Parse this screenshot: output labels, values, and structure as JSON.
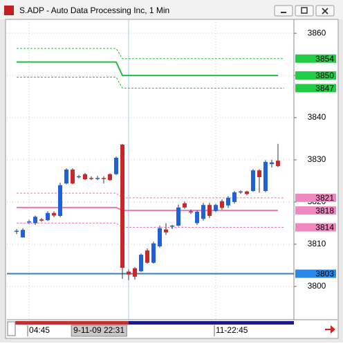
{
  "chart_data": {
    "type": "candlestick",
    "title": "S.ADP - Auto Data Processing Inc, 1 Min",
    "up_color": "#2060d8",
    "down_color": "#c8282a",
    "open": [
      3813,
      3811.6,
      3815.2,
      3815,
      3815.9,
      3815.7,
      3817.4,
      3816.7,
      3824.4,
      3827.7,
      3826,
      3826.6,
      3825.7,
      3825.6,
      3825.7,
      3826.6,
      3826.6,
      3833.6,
      3803.5,
      3804.3,
      3803.6,
      3808.5,
      3805.6,
      3809.5,
      3813.5,
      3814.2,
      3814.4,
      3819.7,
      3817.8,
      3815,
      3816,
      3819.3,
      3817.9,
      3820.2,
      3819.2,
      3820,
      3822.4,
      3822.5,
      3822.6,
      3827.5,
      3822.6,
      3829,
      3829.8
    ],
    "high": [
      3813.6,
      3813.8,
      3815.8,
      3816.8,
      3816.2,
      3817.8,
      3817.8,
      3824.6,
      3828,
      3828,
      3826.4,
      3826.9,
      3826.1,
      3826.2,
      3826.1,
      3826.8,
      3830.8,
      3833.8,
      3804,
      3804.6,
      3807.8,
      3809,
      3810.6,
      3814.4,
      3815,
      3814.6,
      3819.4,
      3820.1,
      3818.2,
      3818,
      3819.8,
      3819.8,
      3819.6,
      3820.6,
      3821.4,
      3822.6,
      3822.8,
      3822.7,
      3827.8,
      3827.8,
      3829.9,
      3830,
      3833.8
    ],
    "low": [
      3812.4,
      3811.6,
      3814.8,
      3814.6,
      3815.3,
      3815.5,
      3816.4,
      3816.4,
      3824.2,
      3824.2,
      3825.6,
      3825.2,
      3825.2,
      3825.2,
      3824.4,
      3825,
      3826.4,
      3801.8,
      3801.5,
      3801.6,
      3803.4,
      3805.4,
      3805.4,
      3809.2,
      3812.2,
      3813.6,
      3814.2,
      3818.4,
      3817.2,
      3814.6,
      3815.6,
      3816.2,
      3817.6,
      3818.2,
      3818.6,
      3819.6,
      3821.9,
      3821.6,
      3822.4,
      3822.2,
      3822.3,
      3828.2,
      3828.3
    ],
    "close": [
      3813.2,
      3813.4,
      3815.4,
      3816.5,
      3815.6,
      3817.4,
      3816.8,
      3824,
      3827.7,
      3824.4,
      3826.1,
      3825.4,
      3825.6,
      3825.7,
      3825.6,
      3825.2,
      3830.5,
      3804.4,
      3802.8,
      3802.3,
      3807.5,
      3805.6,
      3810.2,
      3813.8,
      3812.8,
      3814.4,
      3818.7,
      3818.7,
      3817.6,
      3817.7,
      3819.3,
      3816.7,
      3819.3,
      3818.6,
      3821,
      3822.3,
      3822.5,
      3821.9,
      3827.5,
      3825.9,
      3829.5,
      3829.4,
      3828.5
    ],
    "series": [
      {
        "color": "#22bb44",
        "style": "dashed",
        "x": [
          0,
          16,
          17,
          43
        ],
        "values": [
          3856.4,
          3856.4,
          3854,
          3854
        ]
      },
      {
        "color": "#22bb44",
        "style": "solid",
        "x": [
          0,
          16,
          17,
          42
        ],
        "values": [
          3853.2,
          3853.2,
          3850,
          3850
        ]
      },
      {
        "color": "#22bb44",
        "style": "dashed",
        "x": [
          0,
          16,
          17,
          43
        ],
        "values": [
          3849.6,
          3849.6,
          3847,
          3847
        ]
      },
      {
        "color": "#e878b8",
        "style": "dashed",
        "x": [
          0,
          16,
          17,
          43
        ],
        "values": [
          3822.1,
          3822.1,
          3821,
          3821
        ]
      },
      {
        "color": "#e878b8",
        "style": "solid",
        "x": [
          0,
          16,
          17,
          42
        ],
        "values": [
          3818.7,
          3818.7,
          3818,
          3818
        ]
      },
      {
        "color": "#e878b8",
        "style": "dashed",
        "x": [
          0,
          16,
          17,
          43
        ],
        "values": [
          3815,
          3815,
          3814,
          3814
        ]
      },
      {
        "color": "#3a78c8",
        "style": "solid",
        "x": [
          -1.56,
          44.56
        ],
        "values": [
          3803,
          3803
        ]
      }
    ],
    "price_labels": [
      {
        "value": 3854,
        "color": "#22cc44"
      },
      {
        "value": 3850,
        "color": "#22cc44"
      },
      {
        "value": 3847,
        "color": "#22cc44"
      },
      {
        "value": 3821,
        "color": "#f088c0"
      },
      {
        "value": 3818,
        "color": "#f088c0"
      },
      {
        "value": 3814,
        "color": "#f088c0"
      },
      {
        "value": 3803,
        "color": "#2a88e8"
      }
    ],
    "xlim": [
      -1.56,
      44.56
    ],
    "ylim": [
      3792.1,
      3863.3
    ],
    "yticks": [
      3800,
      3810,
      3820,
      3830,
      3840,
      3850,
      3860
    ],
    "xticks": [
      {
        "value": 2,
        "label": "04:45"
      },
      {
        "value": 32,
        "label": "11-22:45"
      }
    ],
    "cursor": {
      "x": 18,
      "label": "9-11-09  22:31"
    },
    "grid": true
  }
}
